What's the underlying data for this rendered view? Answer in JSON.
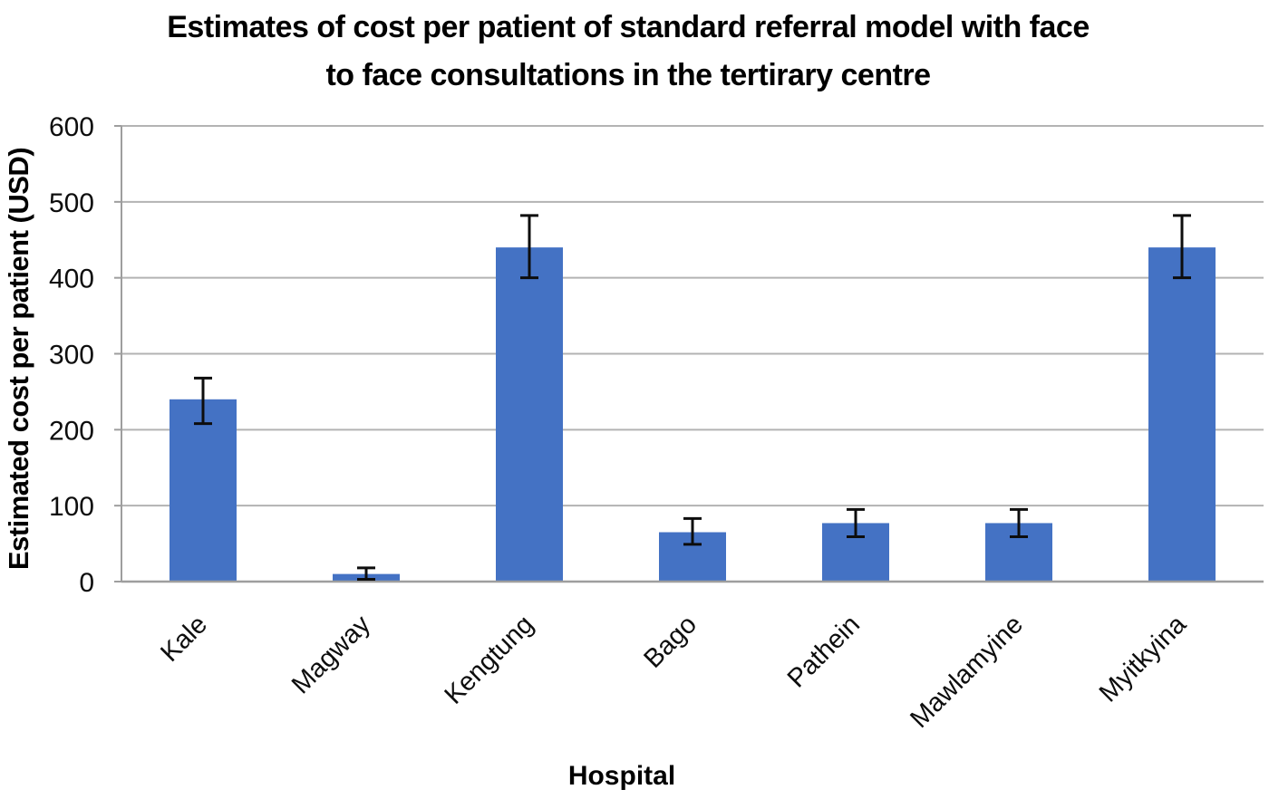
{
  "chart": {
    "title_line1": "Estimates of cost per patient of standard referral model with face",
    "title_line2": "to face consultations in the tertirary centre",
    "ylabel": "Estimated cost per patient (USD)",
    "xlabel": "Hospital"
  },
  "chart_data": {
    "type": "bar",
    "title": "Estimates of cost per patient of standard referral model with face to face consultations in the tertirary centre",
    "xlabel": "Hospital",
    "ylabel": "Estimated cost per patient (USD)",
    "categories": [
      "Kale",
      "Magway",
      "Kengtung",
      "Bago",
      "Pathein",
      "Mawlamyine",
      "Myitkyina"
    ],
    "values": [
      240,
      10,
      440,
      65,
      77,
      77,
      440
    ],
    "error_low": [
      208,
      3,
      400,
      49,
      59,
      59,
      400
    ],
    "error_high": [
      268,
      18,
      482,
      83,
      95,
      95,
      482
    ],
    "ylim": [
      0,
      600
    ],
    "yticks": [
      0,
      100,
      200,
      300,
      400,
      500,
      600
    ],
    "grid": true,
    "legend": false,
    "bar_color": "#4472C4",
    "gridline_color": "#b3b3b3",
    "axis_color": "#9e9e9e",
    "error_color": "#0d0d0d",
    "tick_label_color": "#0d0d0d"
  }
}
